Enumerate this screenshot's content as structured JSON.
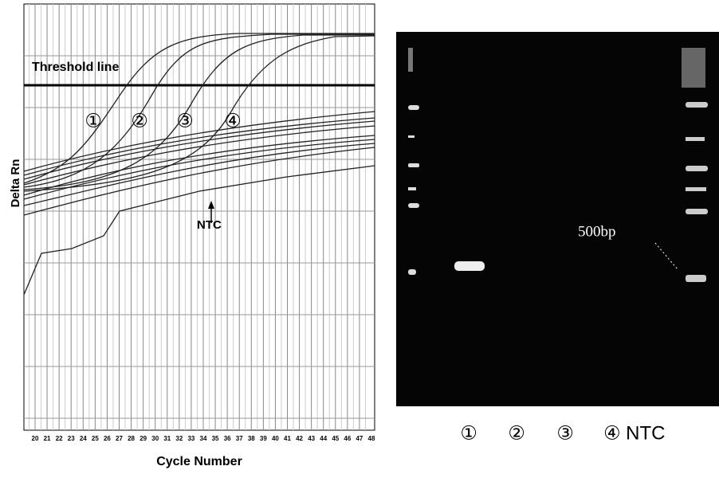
{
  "amplification_plot": {
    "y_axis_label": "Delta Rn",
    "x_axis_label": "Cycle Number",
    "threshold_label": "Threshold line",
    "curve_labels": [
      "①",
      "②",
      "③",
      "④"
    ],
    "ntc_label": "NTC",
    "cycle_labels": [
      "20",
      "21",
      "22",
      "23",
      "24",
      "25",
      "26",
      "27",
      "28",
      "29",
      "30",
      "31",
      "32",
      "33",
      "34",
      "35",
      "36",
      "37",
      "38",
      "39",
      "40",
      "41",
      "42",
      "43",
      "44",
      "45",
      "46",
      "47",
      "48"
    ]
  },
  "gel": {
    "marker_label": "500bp",
    "lane_labels": [
      "①",
      "②",
      "③",
      "④ NTC"
    ]
  }
}
